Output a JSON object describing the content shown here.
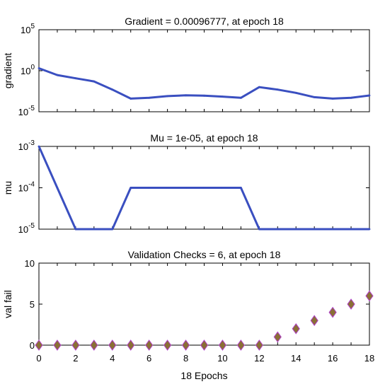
{
  "chart_data": [
    {
      "type": "line",
      "title": "Gradient = 0.00096777, at epoch 18",
      "ylabel": "gradient",
      "yscale": "log",
      "ylim": [
        1e-05,
        100000
      ],
      "yticks": [
        {
          "value": 100000,
          "base": "10",
          "exp": "5"
        },
        {
          "value": 1,
          "base": "10",
          "exp": "0"
        },
        {
          "value": 1e-05,
          "base": "10",
          "exp": "-5"
        }
      ],
      "x": [
        0,
        1,
        2,
        3,
        4,
        5,
        6,
        7,
        8,
        9,
        10,
        11,
        12,
        13,
        14,
        15,
        16,
        17,
        18
      ],
      "values": [
        2,
        0.3,
        0.12,
        0.05,
        0.005,
        0.0004,
        0.0005,
        0.0008,
        0.001,
        0.0009,
        0.0007,
        0.0005,
        0.01,
        0.005,
        0.002,
        0.0006,
        0.0004,
        0.0005,
        0.00096777
      ],
      "color": "#3a4fc0"
    },
    {
      "type": "line",
      "title": "Mu = 1e-05, at epoch 18",
      "ylabel": "mu",
      "yscale": "log",
      "ylim": [
        1e-05,
        0.001
      ],
      "yticks": [
        {
          "value": 0.001,
          "base": "10",
          "exp": "-3"
        },
        {
          "value": 0.0001,
          "base": "10",
          "exp": "-4"
        },
        {
          "value": 1e-05,
          "base": "10",
          "exp": "-5"
        }
      ],
      "x": [
        0,
        1,
        2,
        3,
        4,
        5,
        6,
        7,
        8,
        9,
        10,
        11,
        12,
        13,
        14,
        15,
        16,
        17,
        18
      ],
      "values": [
        0.001,
        0.0001,
        1e-05,
        1e-05,
        1e-05,
        0.0001,
        0.0001,
        0.0001,
        0.0001,
        0.0001,
        0.0001,
        0.0001,
        1e-05,
        1e-05,
        1e-05,
        1e-05,
        1e-05,
        1e-05,
        1e-05
      ],
      "color": "#3a4fc0"
    },
    {
      "type": "scatter",
      "title": "Validation Checks = 6, at epoch 18",
      "ylabel": "val fail",
      "xlabel": "18 Epochs",
      "ylim": [
        0,
        10
      ],
      "yticks": [
        0,
        5,
        10
      ],
      "xlim": [
        0,
        18
      ],
      "xticks": [
        0,
        2,
        4,
        6,
        8,
        10,
        12,
        14,
        16,
        18
      ],
      "x": [
        0,
        1,
        2,
        3,
        4,
        5,
        6,
        7,
        8,
        9,
        10,
        11,
        12,
        13,
        14,
        15,
        16,
        17,
        18
      ],
      "values": [
        0,
        0,
        0,
        0,
        0,
        0,
        0,
        0,
        0,
        0,
        0,
        0,
        0,
        1,
        2,
        3,
        4,
        5,
        6
      ],
      "marker": "diamond",
      "marker_fill": "#8a6f35",
      "marker_edge": "#b040c8"
    }
  ]
}
